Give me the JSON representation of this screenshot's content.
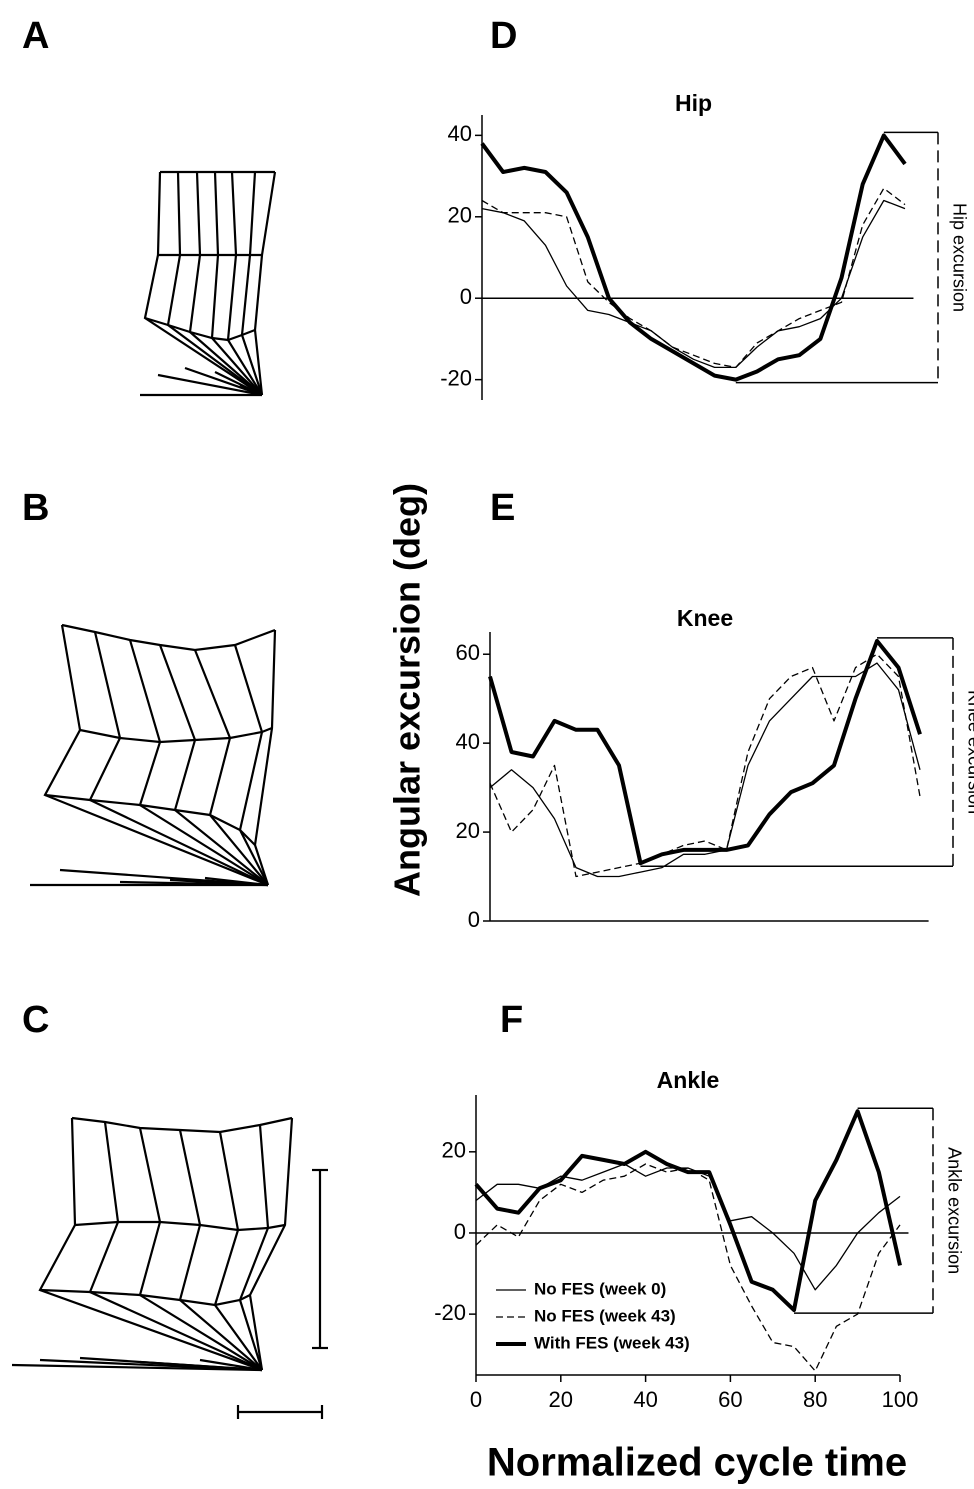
{
  "panel_labels": [
    "A",
    "B",
    "C",
    "D",
    "E",
    "F"
  ],
  "y_axis_label": "Angular excursion (deg)",
  "x_axis_label": "Normalized cycle time",
  "chart_data": [
    {
      "type": "line",
      "title": "Hip",
      "annotation": "Hip excursion",
      "x": [
        0,
        5,
        10,
        15,
        20,
        25,
        30,
        35,
        40,
        45,
        50,
        55,
        60,
        65,
        70,
        75,
        80,
        85,
        90,
        95,
        100
      ],
      "xlim": [
        0,
        100
      ],
      "ylim": [
        -25,
        45
      ],
      "yticks": [
        -20,
        0,
        20,
        40
      ],
      "series": [
        {
          "color": "#000",
          "width": 1.3,
          "dash": false,
          "values": [
            22,
            21,
            19,
            13,
            3,
            -3,
            -4,
            -6,
            -8,
            -12,
            -15,
            -17,
            -17,
            -12,
            -8,
            -7,
            -5,
            0,
            15,
            24,
            22
          ]
        },
        {
          "color": "#000",
          "width": 1.3,
          "dash": true,
          "values": [
            24,
            21,
            21,
            21,
            20,
            4,
            -1,
            -5,
            -8,
            -12,
            -14,
            -16,
            -17,
            -11,
            -8,
            -5,
            -3,
            -1,
            18,
            27,
            23
          ]
        },
        {
          "color": "#000",
          "width": 4,
          "dash": false,
          "values": [
            38,
            31,
            32,
            31,
            26,
            15,
            0,
            -6,
            -10,
            -13,
            -16,
            -19,
            -20,
            -18,
            -15,
            -14,
            -10,
            5,
            28,
            40,
            33
          ]
        }
      ]
    },
    {
      "type": "line",
      "title": "Knee",
      "annotation": "Knee excursion",
      "x": [
        0,
        5,
        10,
        15,
        20,
        25,
        30,
        35,
        40,
        45,
        50,
        55,
        60,
        65,
        70,
        75,
        80,
        85,
        90,
        95,
        100
      ],
      "xlim": [
        0,
        100
      ],
      "ylim": [
        0,
        65
      ],
      "yticks": [
        0,
        20,
        40,
        60
      ],
      "series": [
        {
          "color": "#000",
          "width": 1.3,
          "dash": false,
          "values": [
            30,
            34,
            30,
            23,
            12,
            10,
            10,
            11,
            12,
            15,
            15,
            16,
            35,
            45,
            50,
            55,
            55,
            55,
            58,
            52,
            34
          ]
        },
        {
          "color": "#000",
          "width": 1.3,
          "dash": true,
          "values": [
            31,
            20,
            25,
            35,
            10,
            11,
            12,
            13,
            15,
            17,
            18,
            16,
            38,
            50,
            55,
            57,
            45,
            57,
            60,
            55,
            28
          ]
        },
        {
          "color": "#000",
          "width": 4,
          "dash": false,
          "values": [
            55,
            38,
            37,
            45,
            43,
            43,
            35,
            13,
            15,
            16,
            16,
            16,
            17,
            24,
            29,
            31,
            35,
            50,
            63,
            57,
            42
          ]
        }
      ]
    },
    {
      "type": "line",
      "title": "Ankle",
      "annotation": "Ankle excursion",
      "x": [
        0,
        5,
        10,
        15,
        20,
        25,
        30,
        35,
        40,
        45,
        50,
        55,
        60,
        65,
        70,
        75,
        80,
        85,
        90,
        95,
        100
      ],
      "xlim": [
        0,
        100
      ],
      "xticks": [
        0,
        20,
        40,
        60,
        80,
        100
      ],
      "ylim": [
        -35,
        34
      ],
      "yticks": [
        -20,
        0,
        20
      ],
      "legend": "lower left",
      "series": [
        {
          "name": "No FES (week 0)",
          "color": "#000",
          "width": 1.3,
          "dash": false,
          "values": [
            8,
            12,
            12,
            11,
            14,
            13,
            15,
            17,
            14,
            16,
            16,
            14,
            3,
            4,
            0,
            -5,
            -14,
            -8,
            0,
            5,
            9
          ]
        },
        {
          "name": "No FES (week 43)",
          "color": "#000",
          "width": 1.3,
          "dash": true,
          "values": [
            -3,
            2,
            -1,
            8,
            12,
            10,
            13,
            14,
            17,
            15,
            16,
            13,
            -8,
            -18,
            -27,
            -28,
            -34,
            -23,
            -20,
            -5,
            2
          ]
        },
        {
          "name": "With FES (week 43)",
          "color": "#000",
          "width": 4,
          "dash": false,
          "values": [
            12,
            6,
            5,
            11,
            13,
            19,
            18,
            17,
            20,
            17,
            15,
            15,
            2,
            -12,
            -14,
            -19,
            8,
            18,
            30,
            15,
            -8
          ]
        }
      ]
    }
  ]
}
